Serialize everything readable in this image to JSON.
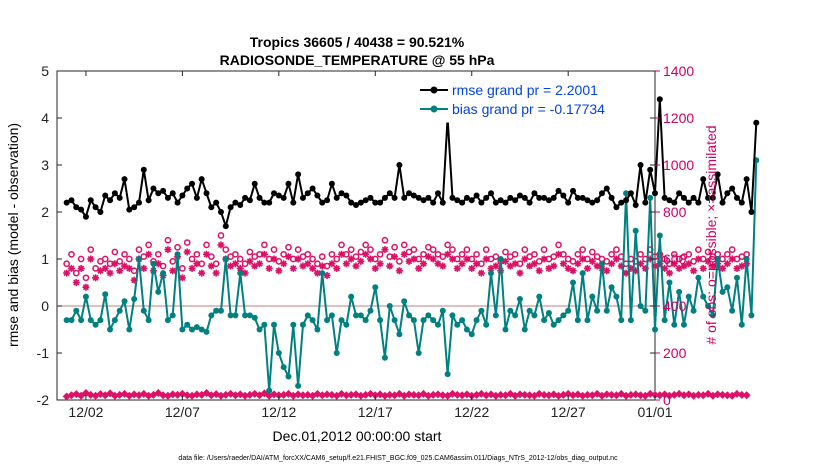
{
  "chart_data": {
    "type": "line",
    "title_line1": "Tropics 36605 / 40438 = 90.521%",
    "title_line2": "RADIOSONDE_TEMPERATURE @ 55 hPa",
    "xlabel": "Dec.01,2012 00:00:00 start",
    "ylabel": "rmse and bias (model - observation)",
    "ylabel_right": "# of obs: o=possible; ×=assimilated",
    "footer": "data file: /Users/raeder/DAI/ATM_forcXX/CAM6_setup/f.e21.FHIST_BGC.f09_025.CAM6assim.011/Diags_NTrS_2012-12/obs_diag_output.nc",
    "xlim": [
      0.5,
      31.5
    ],
    "ylim": [
      -2,
      5
    ],
    "ylim_right": [
      0,
      1400
    ],
    "x_ticks": [
      {
        "x": 2,
        "label": "12/02"
      },
      {
        "x": 7,
        "label": "12/07"
      },
      {
        "x": 12,
        "label": "12/12"
      },
      {
        "x": 17,
        "label": "12/17"
      },
      {
        "x": 22,
        "label": "12/22"
      },
      {
        "x": 27,
        "label": "12/27"
      },
      {
        "x": 32,
        "label": "01/01"
      }
    ],
    "y_ticks": [
      {
        "v": -2,
        "label": "-2"
      },
      {
        "v": -1,
        "label": "-1"
      },
      {
        "v": 0,
        "label": "0"
      },
      {
        "v": 1,
        "label": "1"
      },
      {
        "v": 2,
        "label": "2"
      },
      {
        "v": 3,
        "label": "3"
      },
      {
        "v": 4,
        "label": "4"
      },
      {
        "v": 5,
        "label": "5"
      }
    ],
    "y_ticks_right": [
      {
        "v": 0,
        "label": "0"
      },
      {
        "v": 200,
        "label": "200"
      },
      {
        "v": 400,
        "label": "400"
      },
      {
        "v": 600,
        "label": "600"
      },
      {
        "v": 800,
        "label": "800"
      },
      {
        "v": 1000,
        "label": "1000"
      },
      {
        "v": 1200,
        "label": "1200"
      },
      {
        "v": 1400,
        "label": "1400"
      }
    ],
    "legend": [
      {
        "name": "rmse grand pr = 2.2001",
        "color": "#000000"
      },
      {
        "name": "bias grand pr = -0.17734",
        "color": "#008080"
      }
    ],
    "step": 0.25,
    "rmse": [
      2.2,
      2.25,
      2.1,
      2.05,
      1.9,
      2.25,
      2.1,
      2.0,
      2.35,
      2.25,
      2.4,
      2.3,
      2.7,
      2.05,
      2.1,
      2.2,
      2.9,
      2.25,
      2.5,
      2.4,
      2.45,
      2.3,
      2.4,
      2.2,
      2.35,
      2.5,
      2.6,
      2.3,
      2.7,
      2.4,
      2.1,
      2.2,
      2.0,
      1.7,
      2.1,
      2.2,
      2.15,
      2.3,
      2.25,
      2.6,
      2.3,
      2.2,
      2.2,
      2.4,
      2.35,
      2.3,
      2.6,
      2.2,
      2.8,
      2.3,
      2.4,
      2.5,
      2.35,
      2.2,
      2.25,
      2.6,
      2.3,
      2.4,
      2.35,
      2.2,
      2.15,
      2.2,
      2.25,
      2.3,
      2.2,
      2.2,
      2.3,
      2.4,
      2.3,
      3.0,
      2.3,
      2.4,
      2.35,
      2.3,
      2.25,
      2.3,
      2.2,
      2.4,
      2.2,
      4.0,
      2.3,
      2.25,
      2.2,
      2.3,
      2.25,
      2.35,
      2.2,
      2.3,
      2.4,
      2.2,
      2.25,
      2.2,
      2.3,
      2.25,
      2.35,
      2.3,
      2.2,
      2.4,
      2.3,
      2.3,
      2.25,
      2.3,
      2.45,
      2.35,
      2.2,
      2.45,
      2.3,
      2.3,
      2.25,
      2.2,
      2.25,
      2.4,
      2.5,
      2.3,
      2.1,
      2.2,
      2.25,
      2.4,
      2.15,
      3.0,
      2.2,
      2.9,
      2.4,
      4.4,
      2.3,
      2.25,
      2.2,
      2.4,
      2.3,
      2.2,
      2.3,
      2.2,
      2.7,
      2.3,
      2.3,
      2.8,
      2.2,
      2.4,
      2.5,
      2.3,
      2.2,
      2.7,
      2.0,
      3.9
    ],
    "bias": [
      -0.3,
      -0.3,
      -0.1,
      -0.3,
      0.2,
      -0.3,
      -0.4,
      -0.3,
      0.25,
      -0.5,
      -0.3,
      -0.1,
      0.1,
      -0.5,
      0.15,
      1.0,
      -0.1,
      -0.3,
      0.9,
      0.3,
      0.7,
      -0.3,
      -0.2,
      1.1,
      -0.5,
      -0.4,
      -0.5,
      -0.45,
      -0.5,
      -0.55,
      -0.2,
      -0.1,
      -0.1,
      1.0,
      -0.2,
      -0.2,
      0.7,
      -0.2,
      -0.2,
      -0.25,
      -0.5,
      -0.4,
      -1.8,
      -0.4,
      -1.0,
      -1.3,
      -1.5,
      -0.4,
      -1.7,
      -0.4,
      -0.2,
      -0.3,
      -0.5,
      0.7,
      -0.3,
      -0.2,
      -1.0,
      -0.3,
      -0.4,
      0.2,
      -0.2,
      -0.2,
      -0.3,
      -0.1,
      0.4,
      -0.3,
      -1.1,
      0.0,
      -0.3,
      -0.6,
      0.1,
      -0.2,
      -0.3,
      -1.0,
      -0.3,
      -0.2,
      -0.3,
      -0.4,
      -0.1,
      -1.45,
      -0.2,
      -0.4,
      -0.3,
      -0.5,
      -0.6,
      -0.3,
      -0.1,
      -0.4,
      0.7,
      -0.2,
      1.0,
      -0.5,
      -0.1,
      -0.2,
      0.15,
      -0.5,
      -0.1,
      -0.2,
      0.2,
      -0.3,
      -0.15,
      -0.4,
      -0.3,
      -0.2,
      -0.1,
      0.5,
      -0.3,
      0.7,
      -0.3,
      0.2,
      -0.1,
      0.9,
      -0.1,
      0.4,
      0.2,
      -0.3,
      2.4,
      -0.3,
      1.6,
      0.0,
      -0.1,
      2.3,
      -0.5,
      1.5,
      -0.3,
      0.5,
      -0.4,
      0.3,
      -0.4,
      0.2,
      -0.1,
      0.6,
      0.2,
      0.0,
      -0.2,
      1.0,
      0.3,
      0.4,
      -0.1,
      0.6,
      -0.4,
      1.0,
      -0.2,
      3.1
    ],
    "obs_possible": [
      580,
      620,
      540,
      600,
      520,
      640,
      560,
      590,
      600,
      580,
      630,
      590,
      620,
      600,
      550,
      640,
      610,
      660,
      590,
      620,
      570,
      680,
      590,
      650,
      560,
      670,
      600,
      620,
      580,
      660,
      610,
      580,
      700,
      640,
      610,
      620,
      600,
      580,
      630,
      610,
      620,
      660,
      600,
      640,
      590,
      620,
      650,
      600,
      640,
      610,
      620,
      600,
      580,
      610,
      570,
      620,
      600,
      660,
      620,
      640,
      610,
      630,
      660,
      640,
      600,
      620,
      680,
      610,
      650,
      590,
      660,
      630,
      640,
      600,
      620,
      650,
      640,
      620,
      610,
      660,
      640,
      600,
      620,
      640,
      600,
      620,
      580,
      640,
      600,
      610,
      590,
      630,
      610,
      620,
      580,
      640,
      610,
      620,
      590,
      640,
      600,
      610,
      660,
      620,
      600,
      590,
      620,
      640,
      600,
      630,
      610,
      600,
      590,
      620,
      640,
      610,
      580,
      600,
      590,
      620,
      600,
      640,
      610,
      620,
      600,
      580,
      620,
      600,
      610,
      620,
      590,
      640,
      600,
      630,
      610,
      620,
      600,
      620,
      640,
      600,
      610,
      620
    ],
    "obs_assimilated": [
      540,
      560,
      500,
      560,
      480,
      600,
      520,
      550,
      560,
      540,
      580,
      550,
      570,
      560,
      510,
      600,
      560,
      620,
      550,
      580,
      530,
      640,
      550,
      610,
      520,
      630,
      560,
      580,
      540,
      620,
      570,
      540,
      660,
      600,
      570,
      580,
      560,
      540,
      590,
      570,
      580,
      620,
      560,
      600,
      550,
      580,
      610,
      560,
      600,
      570,
      580,
      560,
      540,
      570,
      530,
      580,
      560,
      620,
      580,
      600,
      570,
      590,
      620,
      600,
      560,
      580,
      640,
      570,
      610,
      550,
      620,
      590,
      600,
      560,
      580,
      610,
      600,
      580,
      570,
      620,
      600,
      560,
      580,
      600,
      560,
      580,
      540,
      600,
      560,
      570,
      550,
      590,
      570,
      580,
      540,
      600,
      570,
      580,
      550,
      600,
      560,
      570,
      620,
      580,
      560,
      550,
      580,
      600,
      560,
      590,
      570,
      560,
      550,
      580,
      600,
      570,
      540,
      560,
      550,
      580,
      560,
      600,
      570,
      580,
      560,
      540,
      580,
      560,
      570,
      580,
      550,
      600,
      560,
      590,
      570,
      580,
      560,
      580,
      600,
      560,
      570,
      580
    ],
    "obs_rejected": [
      15,
      20,
      25,
      18,
      30,
      22,
      18,
      25,
      20,
      28,
      18,
      22,
      26,
      18,
      24,
      20,
      26,
      18,
      22,
      30,
      20,
      18,
      24,
      22,
      26,
      20,
      18,
      24,
      22,
      30,
      20,
      25,
      18,
      22,
      26,
      20,
      24,
      18,
      22,
      26,
      20,
      28,
      18,
      24,
      20,
      22,
      26,
      18,
      24,
      20,
      22,
      18,
      26,
      20,
      24,
      22,
      18,
      26,
      20,
      22,
      24,
      18,
      22,
      26,
      20,
      24,
      18,
      22,
      20,
      26,
      18,
      24,
      22,
      20,
      26,
      18,
      22,
      24,
      20,
      18,
      26,
      22,
      20,
      24,
      18,
      22,
      26,
      20,
      24,
      18,
      22,
      20,
      26,
      18,
      24,
      22,
      20,
      18,
      26,
      22,
      20,
      24,
      18,
      22,
      26,
      20,
      24,
      18,
      22,
      20,
      26,
      18,
      24,
      22,
      20,
      26,
      18,
      22,
      24,
      20,
      18,
      26,
      22,
      20,
      24,
      18,
      22,
      26,
      20,
      24,
      18,
      22,
      20,
      26,
      18,
      24,
      22,
      20,
      18,
      26,
      22,
      20
    ]
  }
}
